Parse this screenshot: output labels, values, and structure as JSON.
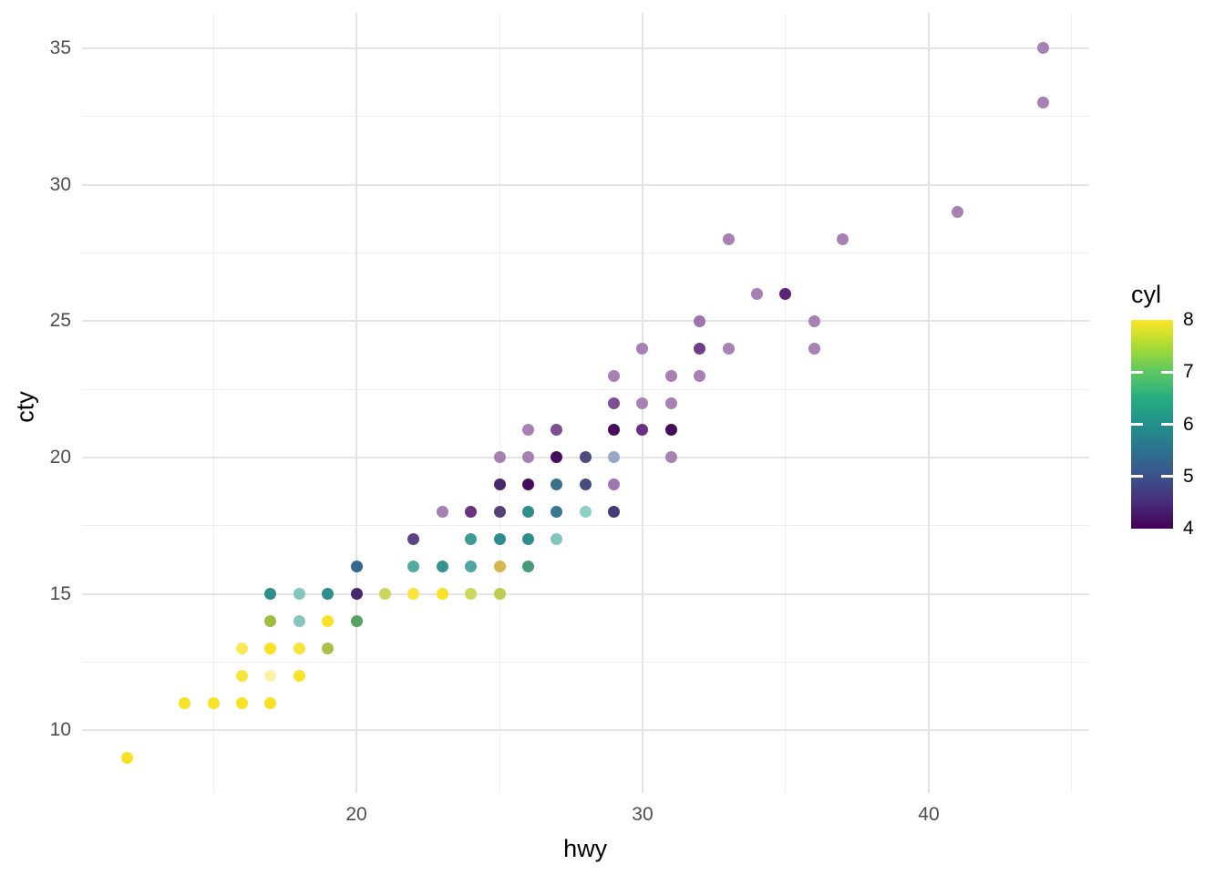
{
  "axes": {
    "x": {
      "label": "hwy",
      "major_ticks": [
        20,
        30,
        40
      ],
      "minor_ticks": [
        15,
        25,
        35,
        45
      ],
      "domain": [
        10.4,
        45.6
      ]
    },
    "y": {
      "label": "cty",
      "major_ticks": [
        10,
        15,
        20,
        25,
        30,
        35
      ],
      "minor_ticks": [
        12.5,
        17.5,
        22.5,
        27.5,
        32.5
      ],
      "domain": [
        7.7,
        36.3
      ]
    }
  },
  "legend": {
    "title": "cyl",
    "ticks": [
      8,
      7,
      6,
      5,
      4
    ],
    "tick_dashes": [
      7,
      6,
      5
    ],
    "domain": [
      4,
      8
    ],
    "gradient_stops_bottom_to_top": [
      "#440154",
      "#472D7B",
      "#3B528B",
      "#2C728E",
      "#21918C",
      "#27AD81",
      "#5DC863",
      "#AADC32",
      "#FDE725"
    ]
  },
  "chart_data": {
    "type": "scatter",
    "xlabel": "hwy",
    "ylabel": "cty",
    "color_label": "cyl",
    "xlim": [
      10.4,
      45.6
    ],
    "ylim": [
      7.7,
      36.3
    ],
    "grid": "on",
    "legend_position": "right",
    "point_colors_meaning": "viridis scale of cyl (4=dark purple, 8=yellow), alpha-blended where points overlap",
    "points": [
      {
        "hwy": 12,
        "cty": 9,
        "color": "#F7E225"
      },
      {
        "hwy": 14,
        "cty": 11,
        "color": "#F7E225"
      },
      {
        "hwy": 15,
        "cty": 11,
        "color": "#F7E225"
      },
      {
        "hwy": 16,
        "cty": 11,
        "color": "#F7E225"
      },
      {
        "hwy": 17,
        "cty": 11,
        "color": "#F7E225"
      },
      {
        "hwy": 16,
        "cty": 12,
        "color": "#F8E53C"
      },
      {
        "hwy": 17,
        "cty": 12,
        "color": "#FBF3A3"
      },
      {
        "hwy": 18,
        "cty": 12,
        "color": "#F7E225"
      },
      {
        "hwy": 16,
        "cty": 13,
        "color": "#F9EA55"
      },
      {
        "hwy": 17,
        "cty": 13,
        "color": "#F7E225"
      },
      {
        "hwy": 18,
        "cty": 13,
        "color": "#F8E53C"
      },
      {
        "hwy": 19,
        "cty": 13,
        "color": "#AEBE4A"
      },
      {
        "hwy": 17,
        "cty": 14,
        "color": "#A0BC42"
      },
      {
        "hwy": 18,
        "cty": 14,
        "color": "#85C7BD"
      },
      {
        "hwy": 19,
        "cty": 14,
        "color": "#F7E225"
      },
      {
        "hwy": 20,
        "cty": 14,
        "color": "#56A361"
      },
      {
        "hwy": 17,
        "cty": 15,
        "color": "#2F8E8D"
      },
      {
        "hwy": 18,
        "cty": 15,
        "color": "#82C6BE"
      },
      {
        "hwy": 19,
        "cty": 15,
        "color": "#2F8E8D"
      },
      {
        "hwy": 20,
        "cty": 15,
        "color": "#46296F"
      },
      {
        "hwy": 21,
        "cty": 15,
        "color": "#CBD75B"
      },
      {
        "hwy": 22,
        "cty": 15,
        "color": "#F8E53C"
      },
      {
        "hwy": 23,
        "cty": 15,
        "color": "#F7E225"
      },
      {
        "hwy": 24,
        "cty": 15,
        "color": "#CCD75D"
      },
      {
        "hwy": 25,
        "cty": 15,
        "color": "#BDCC51"
      },
      {
        "hwy": 20,
        "cty": 16,
        "color": "#33688C"
      },
      {
        "hwy": 22,
        "cty": 16,
        "color": "#52A9A0"
      },
      {
        "hwy": 23,
        "cty": 16,
        "color": "#359490"
      },
      {
        "hwy": 24,
        "cty": 16,
        "color": "#4FA6A2"
      },
      {
        "hwy": 25,
        "cty": 16,
        "color": "#D7B64D"
      },
      {
        "hwy": 26,
        "cty": 16,
        "color": "#4A9A79"
      },
      {
        "hwy": 22,
        "cty": 17,
        "color": "#5A4486"
      },
      {
        "hwy": 24,
        "cty": 17,
        "color": "#3F9B95"
      },
      {
        "hwy": 25,
        "cty": 17,
        "color": "#2F8E8D"
      },
      {
        "hwy": 26,
        "cty": 17,
        "color": "#2F8E8D"
      },
      {
        "hwy": 27,
        "cty": 17,
        "color": "#82C6BE"
      },
      {
        "hwy": 23,
        "cty": 18,
        "color": "#A781B4"
      },
      {
        "hwy": 24,
        "cty": 18,
        "color": "#6E3180"
      },
      {
        "hwy": 25,
        "cty": 18,
        "color": "#554078"
      },
      {
        "hwy": 26,
        "cty": 18,
        "color": "#2F8E8D"
      },
      {
        "hwy": 27,
        "cty": 18,
        "color": "#3A788D"
      },
      {
        "hwy": 28,
        "cty": 18,
        "color": "#8FCFC6"
      },
      {
        "hwy": 29,
        "cty": 18,
        "color": "#463B76"
      },
      {
        "hwy": 25,
        "cty": 19,
        "color": "#472A6E"
      },
      {
        "hwy": 26,
        "cty": 19,
        "color": "#440E5C"
      },
      {
        "hwy": 27,
        "cty": 19,
        "color": "#3D6E8C"
      },
      {
        "hwy": 28,
        "cty": 19,
        "color": "#474B7E"
      },
      {
        "hwy": 29,
        "cty": 19,
        "color": "#A076B0"
      },
      {
        "hwy": 25,
        "cty": 20,
        "color": "#A781B4"
      },
      {
        "hwy": 26,
        "cty": 20,
        "color": "#A781B4"
      },
      {
        "hwy": 27,
        "cty": 20,
        "color": "#450E5B"
      },
      {
        "hwy": 28,
        "cty": 20,
        "color": "#4E4C7C"
      },
      {
        "hwy": 29,
        "cty": 20,
        "color": "#97A8C6"
      },
      {
        "hwy": 31,
        "cty": 20,
        "color": "#A781B4"
      },
      {
        "hwy": 26,
        "cty": 21,
        "color": "#A781B4"
      },
      {
        "hwy": 27,
        "cty": 21,
        "color": "#7D4F92"
      },
      {
        "hwy": 29,
        "cty": 21,
        "color": "#460B5B"
      },
      {
        "hwy": 30,
        "cty": 21,
        "color": "#6C2E82"
      },
      {
        "hwy": 31,
        "cty": 21,
        "color": "#450C59"
      },
      {
        "hwy": 29,
        "cty": 22,
        "color": "#7D4F92"
      },
      {
        "hwy": 30,
        "cty": 22,
        "color": "#A781B4"
      },
      {
        "hwy": 31,
        "cty": 22,
        "color": "#A781B4"
      },
      {
        "hwy": 29,
        "cty": 23,
        "color": "#A781B4"
      },
      {
        "hwy": 31,
        "cty": 23,
        "color": "#A781B4"
      },
      {
        "hwy": 32,
        "cty": 23,
        "color": "#A781B4"
      },
      {
        "hwy": 30,
        "cty": 24,
        "color": "#A781B4"
      },
      {
        "hwy": 32,
        "cty": 24,
        "color": "#6F3E89"
      },
      {
        "hwy": 33,
        "cty": 24,
        "color": "#A781B4"
      },
      {
        "hwy": 36,
        "cty": 24,
        "color": "#A781B4"
      },
      {
        "hwy": 32,
        "cty": 25,
        "color": "#9B74AB"
      },
      {
        "hwy": 36,
        "cty": 25,
        "color": "#A781B4"
      },
      {
        "hwy": 34,
        "cty": 26,
        "color": "#A781B4"
      },
      {
        "hwy": 35,
        "cty": 26,
        "color": "#5D2375"
      },
      {
        "hwy": 33,
        "cty": 28,
        "color": "#A781B4"
      },
      {
        "hwy": 37,
        "cty": 28,
        "color": "#A781B4"
      },
      {
        "hwy": 41,
        "cty": 29,
        "color": "#A781B4"
      },
      {
        "hwy": 44,
        "cty": 33,
        "color": "#A781B4"
      },
      {
        "hwy": 44,
        "cty": 35,
        "color": "#A781B4"
      }
    ]
  }
}
